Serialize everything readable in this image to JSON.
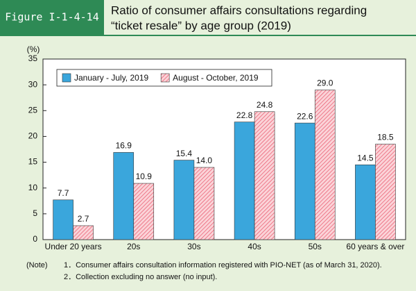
{
  "figure_label": "Figure I-1-4-14",
  "chart_data": {
    "type": "bar",
    "title": [
      "Ratio of consumer affairs consultations regarding",
      "“ticket resale” by age group (2019)"
    ],
    "y_label": "(%)",
    "categories": [
      "Under 20 years",
      "20s",
      "30s",
      "40s",
      "50s",
      "60 years & over"
    ],
    "series": [
      {
        "name": "January - July, 2019",
        "color": "#3aa6dc",
        "pattern": "solid",
        "values": [
          7.7,
          16.9,
          15.4,
          22.8,
          22.6,
          14.5
        ],
        "value_labels": [
          "7.7",
          "16.9",
          "15.4",
          "22.8",
          "22.6",
          "14.5"
        ]
      },
      {
        "name": "August - October, 2019",
        "color": "#e8556a",
        "pattern": "hatch",
        "values": [
          2.7,
          10.9,
          14,
          24.8,
          29,
          18.5
        ],
        "value_labels": [
          "2.7",
          "10.9",
          "14.0",
          "24.8",
          "29.0",
          "18.5"
        ]
      }
    ],
    "ylim": [
      0,
      35
    ],
    "yticks": [
      0,
      5,
      10,
      15,
      20,
      25,
      30,
      35
    ],
    "grid": false,
    "legend": "top-left"
  },
  "notes": {
    "label": "(Note)",
    "items": [
      "1．Consumer affairs consultation information registered with PIO-NET (as of March 31, 2020).",
      "2．Collection excluding no answer (no input)."
    ]
  }
}
